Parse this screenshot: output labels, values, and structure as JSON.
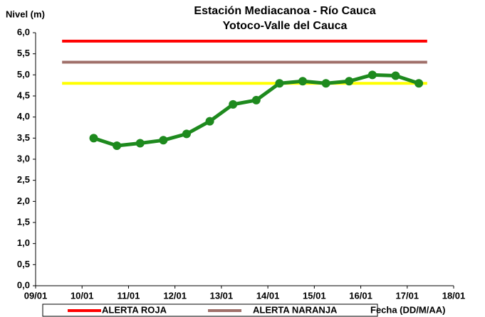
{
  "chart_data": {
    "type": "line",
    "title": "Estación Mediacanoa - Río Cauca",
    "subtitle": "Yotoco-Valle del Cauca",
    "y_label": "Nivel (m)",
    "x_label": "Fecha (DD/M/AA)",
    "xlim": [
      9,
      18
    ],
    "xticks": [
      {
        "value": 9,
        "label": "09/01"
      },
      {
        "value": 10,
        "label": "10/01"
      },
      {
        "value": 11,
        "label": "11/01"
      },
      {
        "value": 12,
        "label": "12/01"
      },
      {
        "value": 13,
        "label": "13/01"
      },
      {
        "value": 14,
        "label": "14/01"
      },
      {
        "value": 15,
        "label": "15/01"
      },
      {
        "value": 16,
        "label": "16/01"
      },
      {
        "value": 17,
        "label": "17/01"
      },
      {
        "value": 18,
        "label": "18/01"
      }
    ],
    "ylim": [
      0,
      6
    ],
    "yticks": [
      {
        "value": 0,
        "label": "0,0"
      },
      {
        "value": 0.5,
        "label": "0,5"
      },
      {
        "value": 1,
        "label": "1,0"
      },
      {
        "value": 1.5,
        "label": "1,5"
      },
      {
        "value": 2,
        "label": "2,0"
      },
      {
        "value": 2.5,
        "label": "2,5"
      },
      {
        "value": 3,
        "label": "3,0"
      },
      {
        "value": 3.5,
        "label": "3,5"
      },
      {
        "value": 4,
        "label": "4,0"
      },
      {
        "value": 4.5,
        "label": "4,5"
      },
      {
        "value": 5,
        "label": "5,0"
      },
      {
        "value": 5.5,
        "label": "5,5"
      },
      {
        "value": 6,
        "label": "6,0"
      }
    ],
    "series": [
      {
        "name": "ALERTA ROJA",
        "color": "#ff0000",
        "x": [
          9.57,
          17.43
        ],
        "values": [
          5.8,
          5.8
        ]
      },
      {
        "name": "ALERTA NARANJA",
        "color": "#a0706a",
        "x": [
          9.57,
          17.43
        ],
        "values": [
          5.3,
          5.3
        ]
      },
      {
        "color": "#ffff00",
        "x": [
          9.57,
          17.43
        ],
        "values": [
          4.8,
          4.8
        ]
      },
      {
        "color": "#1e8a1e",
        "markers": true,
        "x": [
          10.25,
          10.75,
          11.25,
          11.75,
          12.25,
          12.75,
          13.25,
          13.75,
          14.25,
          14.75,
          15.25,
          15.75,
          16.25,
          16.75,
          17.25
        ],
        "values": [
          3.5,
          3.32,
          3.38,
          3.45,
          3.6,
          3.9,
          4.3,
          4.4,
          4.8,
          4.85,
          4.8,
          4.85,
          5.0,
          4.98,
          4.8
        ]
      }
    ]
  }
}
